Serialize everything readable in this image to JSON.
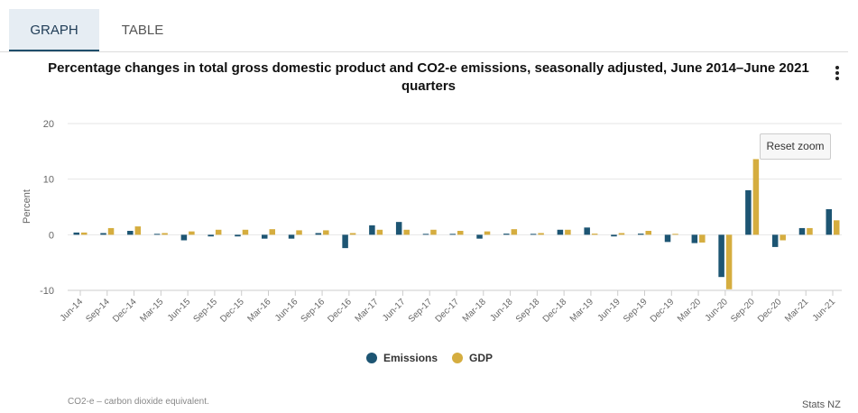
{
  "tabs": [
    {
      "label": "GRAPH"
    },
    {
      "label": "TABLE"
    }
  ],
  "menu_icon": "vertical-ellipsis-icon",
  "reset_zoom_label": "Reset zoom",
  "footnote": "CO2-e – carbon dioxide equivalent.",
  "credit": "Stats NZ",
  "colors": {
    "emissions": "#1d5573",
    "gdp": "#d5ad3f"
  },
  "chart_data": {
    "type": "bar",
    "title": "Percentage changes in total gross domestic product and CO2-e emissions, seasonally adjusted, June 2014–June 2021 quarters",
    "ylabel": "Percent",
    "xlabel": "",
    "ylim": [
      -10,
      20
    ],
    "yticks": [
      -10,
      0,
      10,
      20
    ],
    "grid": true,
    "legend_position": "bottom",
    "categories": [
      "Jun-14",
      "Sep-14",
      "Dec-14",
      "Mar-15",
      "Jun-15",
      "Sep-15",
      "Dec-15",
      "Mar-16",
      "Jun-16",
      "Sep-16",
      "Dec-16",
      "Mar-17",
      "Jun-17",
      "Sep-17",
      "Dec-17",
      "Mar-18",
      "Jun-18",
      "Sep-18",
      "Dec-18",
      "Mar-19",
      "Jun-19",
      "Sep-19",
      "Dec-19",
      "Mar-20",
      "Jun-20",
      "Sep-20",
      "Dec-20",
      "Mar-21",
      "Jun-21"
    ],
    "series": [
      {
        "name": "Emissions",
        "values": [
          0.4,
          0.3,
          0.7,
          0.0,
          -1.0,
          -0.3,
          -0.3,
          -0.7,
          -0.7,
          0.3,
          -2.4,
          1.7,
          2.3,
          0.0,
          0.0,
          -0.7,
          0.2,
          0.0,
          0.9,
          1.3,
          -0.3,
          0.2,
          -1.3,
          -1.5,
          -7.6,
          8.0,
          -2.2,
          1.2,
          4.6
        ]
      },
      {
        "name": "GDP",
        "values": [
          0.4,
          1.2,
          1.5,
          0.3,
          0.6,
          0.9,
          0.9,
          1.0,
          0.8,
          0.8,
          0.3,
          0.9,
          0.9,
          0.9,
          0.7,
          0.6,
          1.0,
          0.3,
          0.9,
          0.2,
          0.3,
          0.7,
          0.0,
          -1.4,
          -9.8,
          13.6,
          -1.0,
          1.2,
          2.6
        ]
      }
    ]
  }
}
